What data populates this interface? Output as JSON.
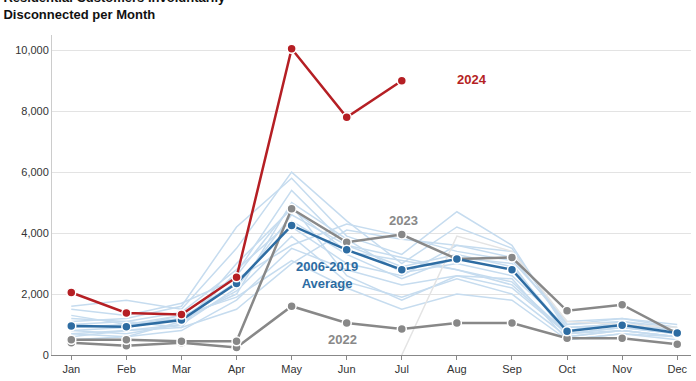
{
  "chart_data": {
    "type": "line",
    "title": "Residential Customers Involuntarily Disconnected per Month",
    "categories": [
      "Jan",
      "Feb",
      "Mar",
      "Apr",
      "May",
      "Jun",
      "Jul",
      "Aug",
      "Sep",
      "Oct",
      "Nov",
      "Dec"
    ],
    "ylim": [
      0,
      10500
    ],
    "yticks": [
      0,
      {
        "value": 2000,
        "label": "2,000"
      },
      {
        "value": 4000,
        "label": "4,000"
      },
      {
        "value": 6000,
        "label": "6,000"
      },
      {
        "value": 8000,
        "label": "8,000"
      },
      {
        "value": 10000,
        "label": "10,000"
      }
    ],
    "grid": true,
    "series": [
      {
        "color": "#c6dcef",
        "values": [
          1500,
          1300,
          1700,
          2500,
          3600,
          4300,
          3900,
          3400,
          3100,
          1100,
          1200,
          1000
        ]
      },
      {
        "color": "#c6dcef",
        "values": [
          1000,
          900,
          1200,
          2000,
          5000,
          3800,
          2700,
          3000,
          2600,
          900,
          1000,
          800
        ]
      },
      {
        "color": "#c6dcef",
        "values": [
          800,
          700,
          1000,
          2200,
          4600,
          3600,
          3200,
          2800,
          2400,
          700,
          900,
          700
        ]
      },
      {
        "color": "#c6dcef",
        "values": [
          600,
          800,
          900,
          1500,
          3000,
          4100,
          3800,
          3600,
          3400,
          1000,
          1100,
          900
        ]
      },
      {
        "color": "#c6dcef",
        "values": [
          1200,
          1100,
          1400,
          2800,
          4400,
          3300,
          2500,
          3200,
          3000,
          600,
          800,
          600
        ]
      },
      {
        "color": "#c6dcef",
        "values": [
          700,
          600,
          800,
          1800,
          3500,
          2800,
          2300,
          2600,
          2500,
          500,
          700,
          500
        ]
      },
      {
        "color": "#c6dcef",
        "values": [
          1600,
          1800,
          1500,
          3500,
          6000,
          4400,
          3000,
          4200,
          3500,
          900,
          1000,
          700
        ]
      },
      {
        "color": "#c6dcef",
        "values": [
          900,
          1000,
          1300,
          2600,
          4900,
          2600,
          1800,
          2600,
          2200,
          700,
          900,
          700
        ]
      },
      {
        "color": "#c6dcef",
        "values": [
          1100,
          1200,
          1600,
          4200,
          5800,
          3900,
          3300,
          4700,
          3600,
          800,
          1100,
          800
        ]
      },
      {
        "color": "#c6dcef",
        "values": [
          500,
          600,
          1100,
          2100,
          3900,
          2400,
          1900,
          2500,
          2000,
          600,
          800,
          600
        ]
      },
      {
        "color": "#c6dcef",
        "values": [
          800,
          900,
          1300,
          1900,
          3100,
          2200,
          1500,
          2000,
          1800,
          500,
          700,
          600
        ]
      },
      {
        "color": "#c6dcef",
        "values": [
          1300,
          1000,
          1200,
          2400,
          4200,
          3000,
          2600,
          3600,
          3200,
          1000,
          1200,
          900
        ]
      },
      {
        "color": "#c6dcef",
        "values": [
          700,
          800,
          1000,
          2700,
          5400,
          3600,
          2900,
          3300,
          2900,
          800,
          1000,
          700
        ]
      },
      {
        "color": "#c6dcef",
        "values": [
          1000,
          1100,
          900,
          3000,
          4800,
          3400,
          3100,
          2800,
          2300,
          700,
          800,
          600
        ]
      },
      {
        "color": "#e4e4e4",
        "values": [
          null,
          null,
          null,
          null,
          null,
          null,
          0,
          3900,
          3400,
          1100,
          1000,
          900
        ]
      },
      {
        "name": "2022",
        "color": "#888888",
        "marker": "circle",
        "values": [
          400,
          300,
          400,
          250,
          1600,
          1050,
          850,
          1050,
          1050,
          550,
          550,
          350
        ]
      },
      {
        "name": "2023",
        "color": "#888888",
        "marker": "circle",
        "values": [
          500,
          500,
          450,
          450,
          4800,
          3700,
          3950,
          3150,
          3200,
          1450,
          1650,
          700
        ]
      },
      {
        "name": "2006-2019 Average",
        "color": "#2d6ca2",
        "marker": "circle",
        "values": [
          950,
          930,
          1150,
          2350,
          4250,
          3450,
          2800,
          3150,
          2800,
          780,
          980,
          720
        ]
      },
      {
        "name": "2024",
        "color": "#b51f24",
        "marker": "circle",
        "values": [
          2050,
          1380,
          1330,
          2550,
          10050,
          7800,
          9000,
          null,
          null,
          null,
          null,
          null
        ]
      }
    ]
  }
}
